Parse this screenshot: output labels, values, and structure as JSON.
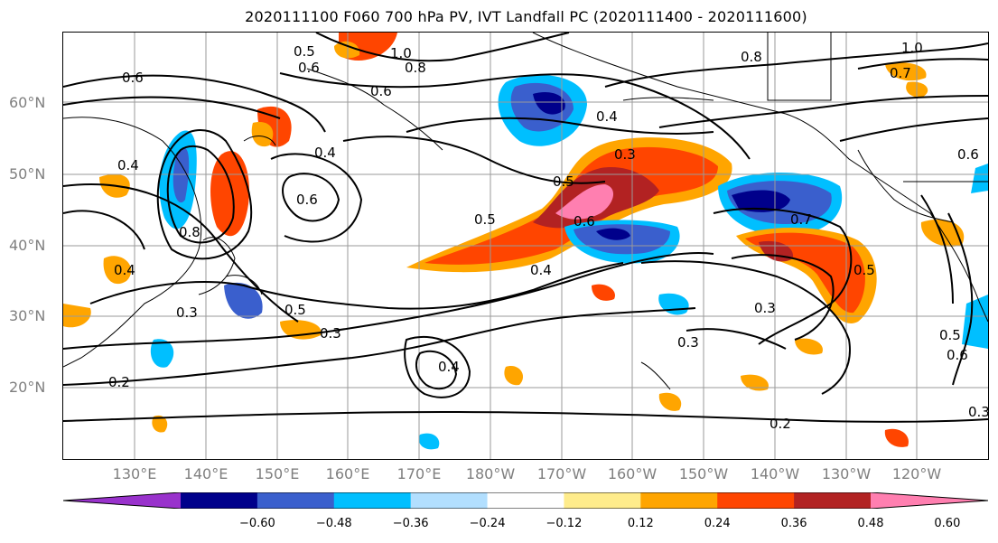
{
  "title": "2020111100 F060 700 hPa PV, IVT Landfall PC (2020111400 - 2020111600)",
  "lat_labels": [
    "60°N",
    "50°N",
    "40°N",
    "30°N",
    "20°N"
  ],
  "lon_labels": [
    "130°E",
    "140°E",
    "150°E",
    "160°E",
    "170°E",
    "180°W",
    "170°W",
    "160°W",
    "150°W",
    "140°W",
    "130°W",
    "120°W"
  ],
  "colorbar": {
    "colors": [
      "#9932cc",
      "#00008b",
      "#3a5fcd",
      "#00bfff",
      "#b2dfff",
      "#ffffff",
      "#ffec8b",
      "#ffa500",
      "#ff4500",
      "#b22222",
      "#ff7fb0"
    ],
    "ticks": [
      "−0.60",
      "−0.48",
      "−0.36",
      "−0.24",
      "−0.12",
      "0.12",
      "0.24",
      "0.36",
      "0.48",
      "0.60"
    ]
  },
  "contour_labels": [
    "0.5",
    "1.0",
    "0.6",
    "0.8",
    "0.6",
    "0.6",
    "0.4",
    "0.4",
    "0.3",
    "0.5",
    "0.6",
    "0.5",
    "0.8",
    "0.4",
    "0.3",
    "0.5",
    "0.3",
    "0.3",
    "0.2",
    "0.4",
    "0.4",
    "0.3",
    "0.7",
    "0.6",
    "0.5",
    "0.8",
    "1.0",
    "0.7",
    "0.6",
    "0.4",
    "0.5",
    "0.6",
    "0.3",
    "0.2"
  ]
}
